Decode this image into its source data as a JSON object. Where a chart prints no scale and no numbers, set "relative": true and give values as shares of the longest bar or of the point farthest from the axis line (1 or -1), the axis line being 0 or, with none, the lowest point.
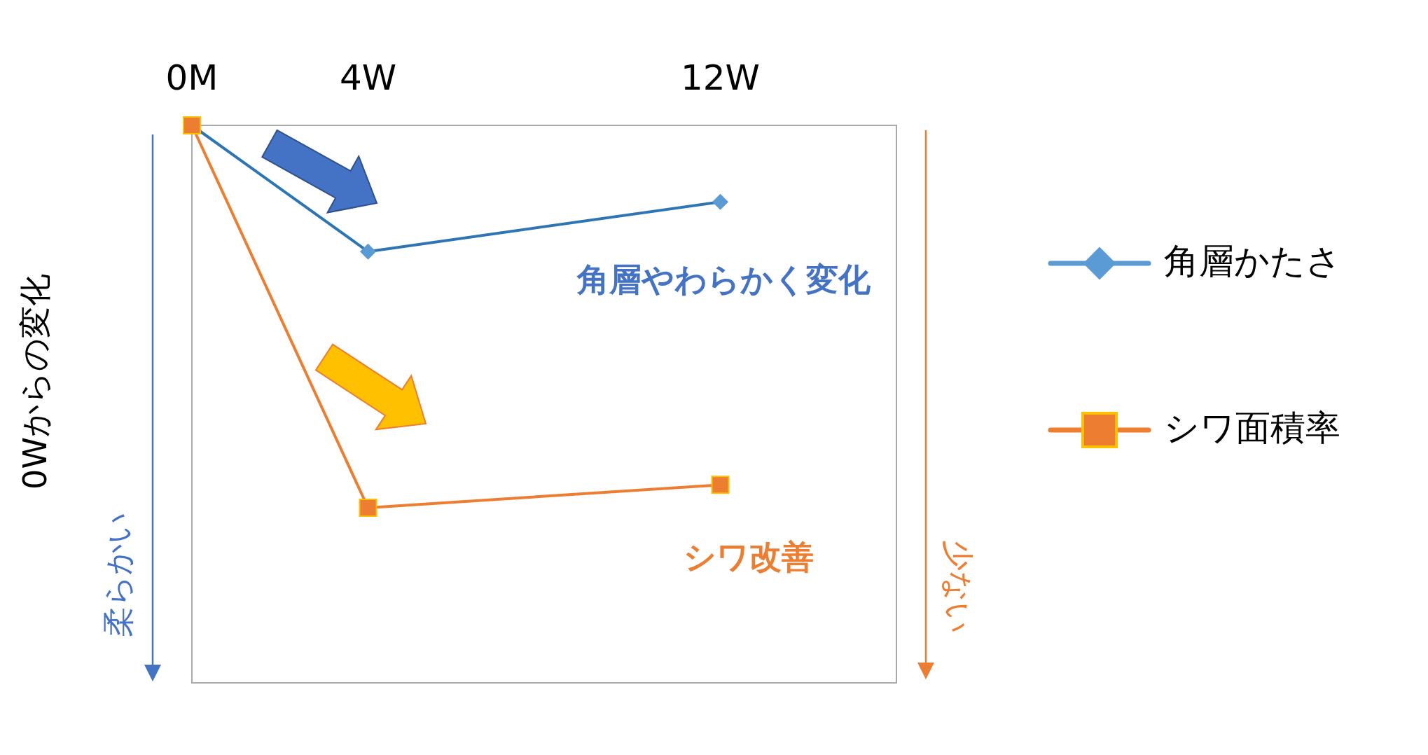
{
  "chart_data": {
    "type": "line",
    "relative": true,
    "ylabel": "0Wからの変化",
    "x": [
      0,
      4,
      12
    ],
    "xlim": [
      0,
      16
    ],
    "xticks": [
      {
        "value": 0,
        "label": "0M"
      },
      {
        "value": 4,
        "label": "4W"
      },
      {
        "value": 12,
        "label": "12W"
      }
    ],
    "series": [
      {
        "name": "角層かたさ",
        "color": "#2e75b6",
        "marker": "diamond",
        "values": [
          0,
          -0.33,
          -0.2
        ]
      },
      {
        "name": "シワ面積率",
        "color": "#ed7d31",
        "marker": "square",
        "values": [
          0,
          -1,
          -0.94
        ]
      }
    ],
    "annotations": [
      "角層やわらかく変化",
      "シワ改善",
      "柔らかい",
      "少ない"
    ],
    "grid": false,
    "legend": "right"
  }
}
